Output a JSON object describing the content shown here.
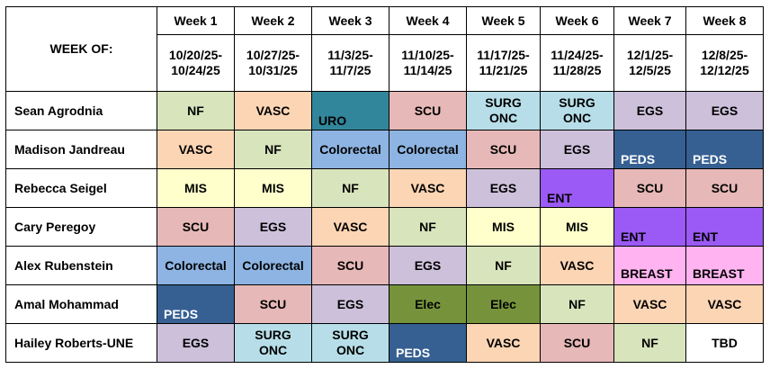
{
  "header": {
    "week_of_label": "WEEK OF:",
    "weeks": [
      {
        "label": "Week 1",
        "dates": [
          "10/20/25-",
          "10/24/25"
        ]
      },
      {
        "label": "Week 2",
        "dates": [
          "10/27/25-",
          "10/31/25"
        ]
      },
      {
        "label": "Week 3",
        "dates": [
          "11/3/25-",
          "11/7/25"
        ]
      },
      {
        "label": "Week 4",
        "dates": [
          "11/10/25-",
          "11/14/25"
        ]
      },
      {
        "label": "Week 5",
        "dates": [
          "11/17/25-",
          "11/21/25"
        ]
      },
      {
        "label": "Week 6",
        "dates": [
          "11/24/25-",
          "11/28/25"
        ]
      },
      {
        "label": "Week 7",
        "dates": [
          "12/1/25-",
          "12/5/25"
        ]
      },
      {
        "label": "Week 8",
        "dates": [
          "12/8/25-",
          "12/12/25"
        ]
      }
    ]
  },
  "rotation_colors": {
    "NF": "#d8e4bc",
    "VASC": "#fcd5b4",
    "URO": "#31869b",
    "SCU": "#e6b8b7",
    "SURG ONC": "#b7dee8",
    "EGS": "#ccc0da",
    "Colorectal": "#8db4e2",
    "PEDS": "#366092",
    "MIS": "#ffffcc",
    "ENT": "#9b59f5",
    "BREAST": "#ffb3f0",
    "Elec": "#76933c",
    "TBD": "#ffffff"
  },
  "students": [
    {
      "name": "Sean Agrodnia",
      "rotations": [
        "NF",
        "VASC",
        "URO",
        "SCU",
        "SURG ONC",
        "SURG ONC",
        "EGS",
        "EGS"
      ]
    },
    {
      "name": "Madison Jandreau",
      "rotations": [
        "VASC",
        "NF",
        "Colorectal",
        "Colorectal",
        "SCU",
        "EGS",
        "PEDS",
        "PEDS"
      ]
    },
    {
      "name": "Rebecca Seigel",
      "rotations": [
        "MIS",
        "MIS",
        "NF",
        "VASC",
        "EGS",
        "ENT",
        "SCU",
        "SCU"
      ]
    },
    {
      "name": "Cary Peregoy",
      "rotations": [
        "SCU",
        "EGS",
        "VASC",
        "NF",
        "MIS",
        "MIS",
        "ENT",
        "ENT"
      ]
    },
    {
      "name": "Alex Rubenstein",
      "rotations": [
        "Colorectal",
        "Colorectal",
        "SCU",
        "EGS",
        "NF",
        "VASC",
        "BREAST",
        "BREAST"
      ]
    },
    {
      "name": "Amal Mohammad",
      "rotations": [
        "PEDS",
        "SCU",
        "EGS",
        "Elec",
        "Elec",
        "NF",
        "VASC",
        "VASC"
      ]
    },
    {
      "name": "Hailey Roberts-UNE",
      "rotations": [
        "EGS",
        "SURG ONC",
        "SURG ONC",
        "PEDS",
        "VASC",
        "SCU",
        "NF",
        "TBD"
      ]
    }
  ]
}
